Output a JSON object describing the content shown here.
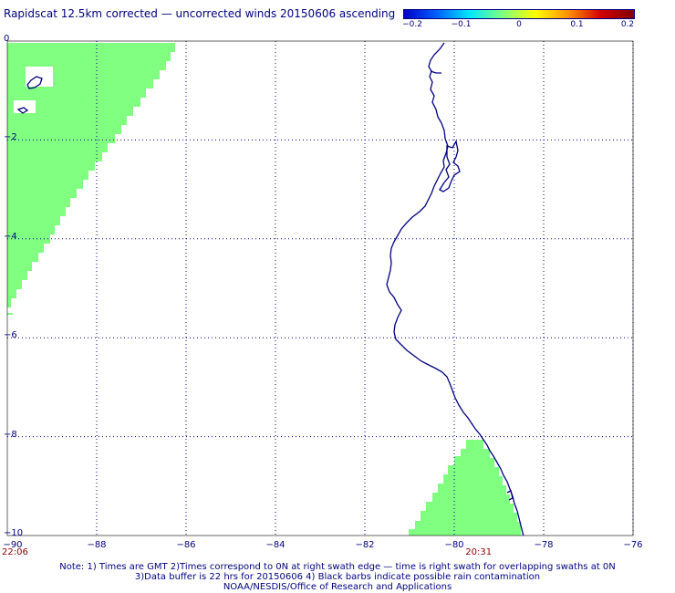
{
  "title": "Rapidscat 12.5km corrected — uncorrected winds 20150606 ascending",
  "colorbar": {
    "colors": [
      "#0000c8",
      "#0060ff",
      "#00e8ff",
      "#80ff80",
      "#ffff00",
      "#ff9000",
      "#d00000",
      "#800000"
    ],
    "ticks": [
      {
        "label": "−0.2",
        "value": -0.2
      },
      {
        "label": "−0.1",
        "value": -0.1
      },
      {
        "label": "0",
        "value": 0
      },
      {
        "label": "0.1",
        "value": 0.1
      },
      {
        "label": "0.2",
        "value": 0.2
      }
    ]
  },
  "map": {
    "lon_range": [
      -90,
      -76
    ],
    "lat_range": [
      -10,
      0
    ],
    "x_ticks": [
      {
        "label": "−90",
        "value": -90
      },
      {
        "label": "−88",
        "value": -88
      },
      {
        "label": "−86",
        "value": -86
      },
      {
        "label": "−84",
        "value": -84
      },
      {
        "label": "−82",
        "value": -82
      },
      {
        "label": "−80",
        "value": -80
      },
      {
        "label": "−78",
        "value": -78
      },
      {
        "label": "−76",
        "value": -76
      }
    ],
    "y_ticks": [
      {
        "label": "0",
        "value": 0
      },
      {
        "label": "−2",
        "value": -2
      },
      {
        "label": "−4",
        "value": -4
      },
      {
        "label": "−6",
        "value": -6
      },
      {
        "label": "−8",
        "value": -8
      },
      {
        "label": "−10",
        "value": -10
      }
    ],
    "grid": "dotted",
    "swath_color": "#80ff80",
    "coast_color": "#000080",
    "time_labels": [
      {
        "text": "22:06",
        "lon": -90
      },
      {
        "text": "20:31",
        "lon": -79.75
      }
    ]
  },
  "notes": [
    "Note: 1) Times are GMT 2)Times correspond to 0N at right swath edge — time is right swath for overlapping swaths at 0N",
    "3)Data buffer is 22 hrs for 20150606 4) Black barbs indicate possible rain contamination",
    "NOAA/NESDIS/Office of Research and Applications"
  ]
}
